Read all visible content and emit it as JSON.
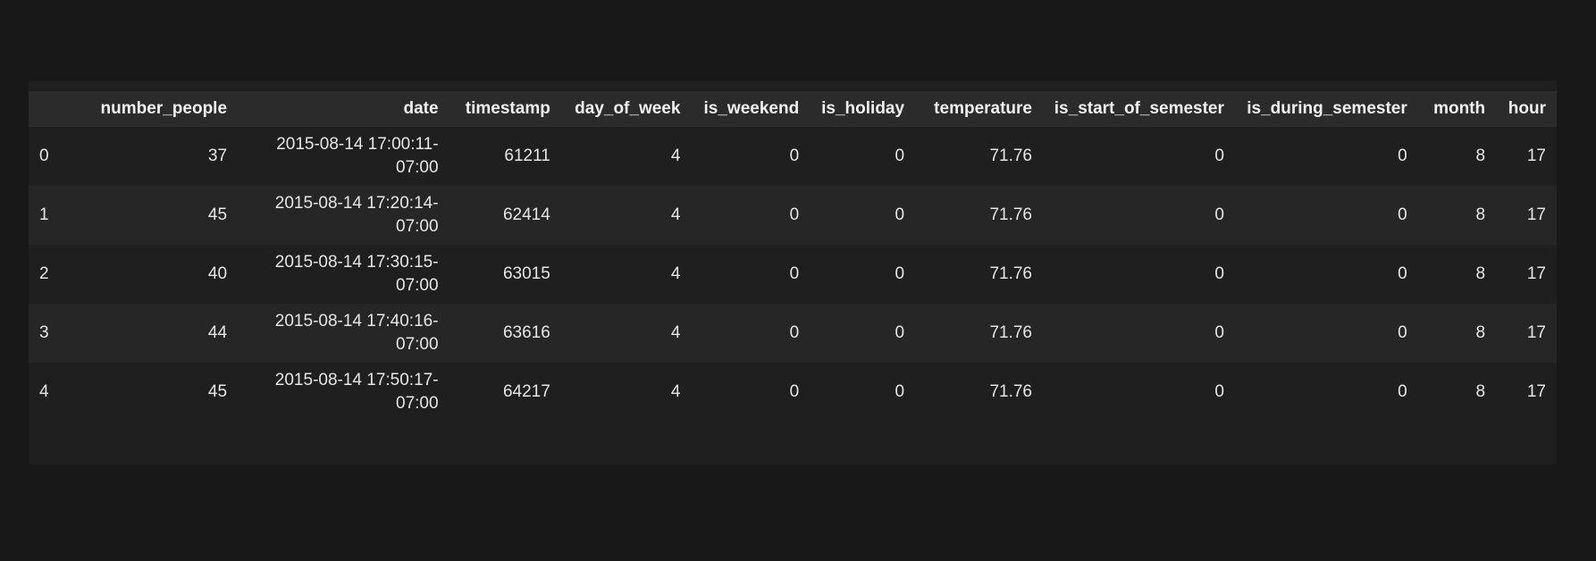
{
  "table": {
    "index_header": "",
    "columns": [
      "number_people",
      "date",
      "timestamp",
      "day_of_week",
      "is_weekend",
      "is_holiday",
      "temperature",
      "is_start_of_semester",
      "is_during_semester",
      "month",
      "hour"
    ],
    "rows": [
      {
        "index": "0",
        "number_people": "37",
        "date_line1": "2015-08-14 17:00:11-",
        "date_line2": "07:00",
        "timestamp": "61211",
        "day_of_week": "4",
        "is_weekend": "0",
        "is_holiday": "0",
        "temperature": "71.76",
        "is_start_of_semester": "0",
        "is_during_semester": "0",
        "month": "8",
        "hour": "17"
      },
      {
        "index": "1",
        "number_people": "45",
        "date_line1": "2015-08-14 17:20:14-",
        "date_line2": "07:00",
        "timestamp": "62414",
        "day_of_week": "4",
        "is_weekend": "0",
        "is_holiday": "0",
        "temperature": "71.76",
        "is_start_of_semester": "0",
        "is_during_semester": "0",
        "month": "8",
        "hour": "17"
      },
      {
        "index": "2",
        "number_people": "40",
        "date_line1": "2015-08-14 17:30:15-",
        "date_line2": "07:00",
        "timestamp": "63015",
        "day_of_week": "4",
        "is_weekend": "0",
        "is_holiday": "0",
        "temperature": "71.76",
        "is_start_of_semester": "0",
        "is_during_semester": "0",
        "month": "8",
        "hour": "17"
      },
      {
        "index": "3",
        "number_people": "44",
        "date_line1": "2015-08-14 17:40:16-",
        "date_line2": "07:00",
        "timestamp": "63616",
        "day_of_week": "4",
        "is_weekend": "0",
        "is_holiday": "0",
        "temperature": "71.76",
        "is_start_of_semester": "0",
        "is_during_semester": "0",
        "month": "8",
        "hour": "17"
      },
      {
        "index": "4",
        "number_people": "45",
        "date_line1": "2015-08-14 17:50:17-",
        "date_line2": "07:00",
        "timestamp": "64217",
        "day_of_week": "4",
        "is_weekend": "0",
        "is_holiday": "0",
        "temperature": "71.76",
        "is_start_of_semester": "0",
        "is_during_semester": "0",
        "month": "8",
        "hour": "17"
      }
    ]
  },
  "colors": {
    "page_background": "#181818",
    "panel_background": "#1f1f1f",
    "header_background": "#2b2b2b",
    "row_alt_background": "#262626",
    "text": "#e6e6e6"
  }
}
